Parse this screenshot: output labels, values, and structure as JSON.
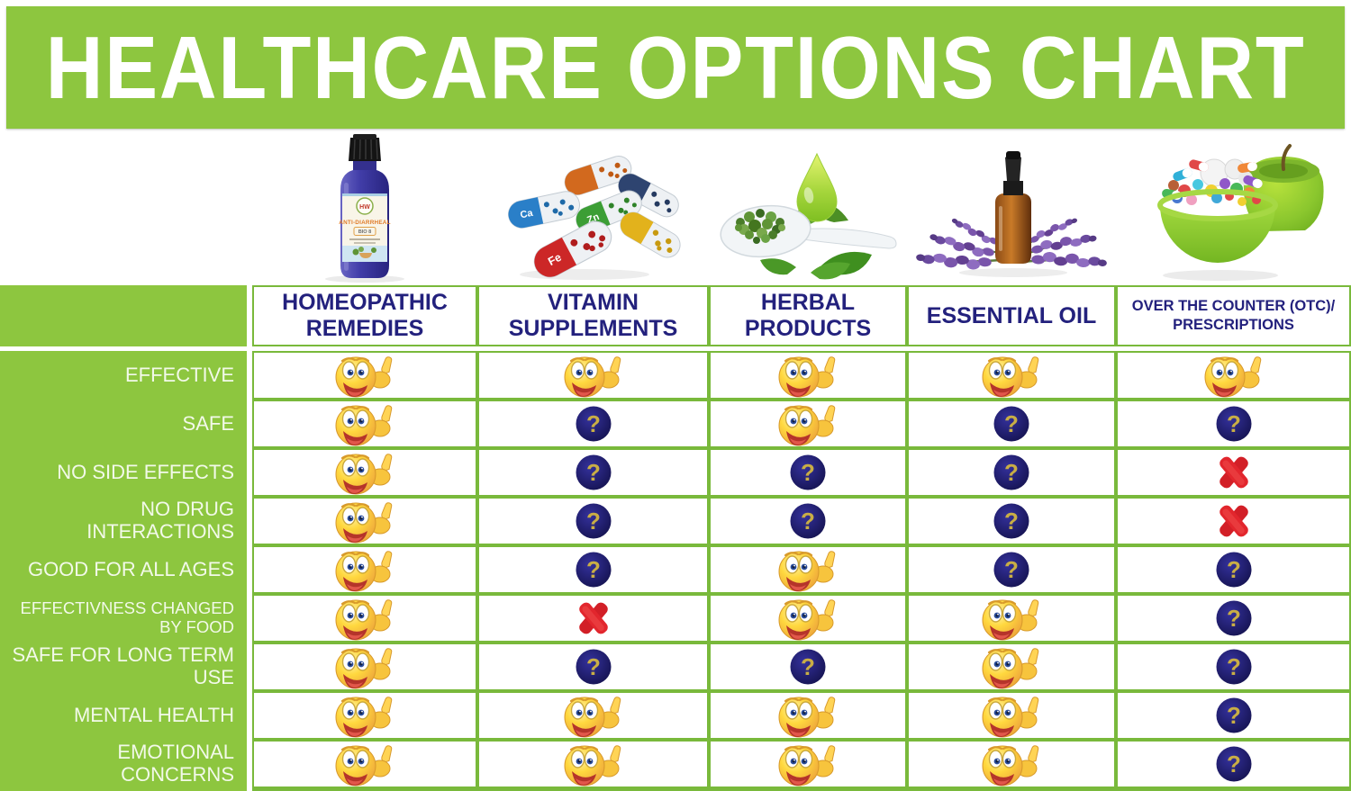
{
  "title": "HEALTHCARE OPTIONS CHART",
  "colors": {
    "green_fill": "#8dc63f",
    "green_border": "#79b93b",
    "header_text_navy": "#23217d",
    "question_circle_navy": "#1c1a6b",
    "question_glyph_gold": "#c9ae45",
    "x_red": "#e2262d",
    "smiley_yellow": "#ffd83e"
  },
  "columns": [
    {
      "label": "HOMEOPATHIC REMEDIES",
      "image": "homeopathic-remedy-bottle"
    },
    {
      "label": "VITAMIN SUPPLEMENTS",
      "image": "vitamin-capsules"
    },
    {
      "label": "HERBAL PRODUCTS",
      "image": "herbal-spoon-drop-leaves"
    },
    {
      "label": "ESSENTIAL OIL",
      "image": "essential-oil-dropper-bottle"
    },
    {
      "label": "OVER THE COUNTER (OTC)/ PRESCRIPTIONS",
      "image": "pill-bowl-with-apple"
    }
  ],
  "bottle_label": {
    "brand": "HW",
    "line1": "ANTI-DIARRHEAL",
    "line2": "BIO 8"
  },
  "capsule_labels": [
    "Ca",
    "Zn",
    "Fe"
  ],
  "legend_icons": {
    "yes": {
      "name": "thumbs-up-smiley"
    },
    "unknown": {
      "name": "question-mark",
      "glyph": "?"
    },
    "no": {
      "name": "red-x"
    }
  },
  "rows": [
    {
      "label": "EFFECTIVE",
      "values": [
        "yes",
        "yes",
        "yes",
        "yes",
        "yes"
      ]
    },
    {
      "label": "SAFE",
      "values": [
        "yes",
        "unknown",
        "yes",
        "unknown",
        "unknown"
      ]
    },
    {
      "label": "NO SIDE EFFECTS",
      "values": [
        "yes",
        "unknown",
        "unknown",
        "unknown",
        "no"
      ]
    },
    {
      "label": "NO DRUG INTERACTIONS",
      "values": [
        "yes",
        "unknown",
        "unknown",
        "unknown",
        "no"
      ]
    },
    {
      "label": "GOOD FOR ALL AGES",
      "values": [
        "yes",
        "unknown",
        "yes",
        "unknown",
        "unknown"
      ]
    },
    {
      "label": "EFFECTIVNESS CHANGED BY FOOD",
      "values": [
        "yes",
        "no",
        "yes",
        "yes",
        "unknown"
      ]
    },
    {
      "label": "SAFE FOR LONG TERM USE",
      "values": [
        "yes",
        "unknown",
        "unknown",
        "yes",
        "unknown"
      ]
    },
    {
      "label": "MENTAL HEALTH",
      "values": [
        "yes",
        "yes",
        "yes",
        "yes",
        "unknown"
      ]
    },
    {
      "label": "EMOTIONAL CONCERNS",
      "values": [
        "yes",
        "yes",
        "yes",
        "yes",
        "unknown"
      ]
    }
  ],
  "chart_data": {
    "type": "table",
    "title": "HEALTHCARE OPTIONS CHART",
    "columns": [
      "HOMEOPATHIC REMEDIES",
      "VITAMIN SUPPLEMENTS",
      "HERBAL PRODUCTS",
      "ESSENTIAL OIL",
      "OVER THE COUNTER (OTC)/ PRESCRIPTIONS"
    ],
    "row_labels": [
      "EFFECTIVE",
      "SAFE",
      "NO SIDE EFFECTS",
      "NO DRUG INTERACTIONS",
      "GOOD FOR ALL AGES",
      "EFFECTIVNESS CHANGED BY FOOD",
      "SAFE FOR LONG TERM USE",
      "MENTAL HEALTH",
      "EMOTIONAL CONCERNS"
    ],
    "cell_values": [
      [
        "yes",
        "yes",
        "yes",
        "yes",
        "yes"
      ],
      [
        "yes",
        "unknown",
        "yes",
        "unknown",
        "unknown"
      ],
      [
        "yes",
        "unknown",
        "unknown",
        "unknown",
        "no"
      ],
      [
        "yes",
        "unknown",
        "unknown",
        "unknown",
        "no"
      ],
      [
        "yes",
        "unknown",
        "yes",
        "unknown",
        "unknown"
      ],
      [
        "yes",
        "no",
        "yes",
        "yes",
        "unknown"
      ],
      [
        "yes",
        "unknown",
        "unknown",
        "yes",
        "unknown"
      ],
      [
        "yes",
        "yes",
        "yes",
        "yes",
        "unknown"
      ],
      [
        "yes",
        "yes",
        "yes",
        "yes",
        "unknown"
      ]
    ],
    "legend": {
      "yes": "thumbs-up smiley (positive)",
      "unknown": "navy circle with gold question mark (uncertain)",
      "no": "red X (negative)"
    }
  }
}
